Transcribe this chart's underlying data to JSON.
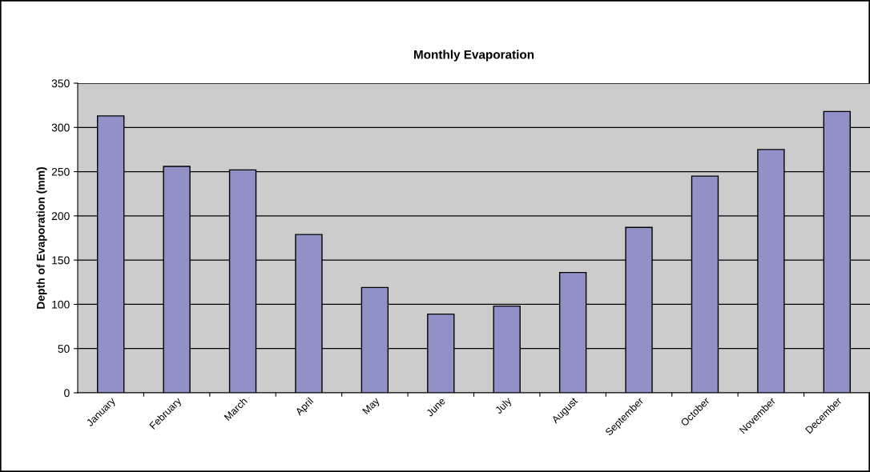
{
  "chart_data": {
    "type": "bar",
    "title": "Monthly Evaporation",
    "ylabel": "Depth of Evaporation (mm)",
    "categories": [
      "January",
      "February",
      "March",
      "April",
      "May",
      "June",
      "July",
      "August",
      "September",
      "October",
      "November",
      "December"
    ],
    "values": [
      313,
      256,
      252,
      179,
      119,
      89,
      98,
      136,
      187,
      245,
      275,
      318
    ],
    "color": "#9191c8",
    "ylim": [
      0,
      350
    ],
    "yticks": [
      0,
      50,
      100,
      150,
      200,
      250,
      300,
      350
    ],
    "grid": "y",
    "legend": false
  }
}
